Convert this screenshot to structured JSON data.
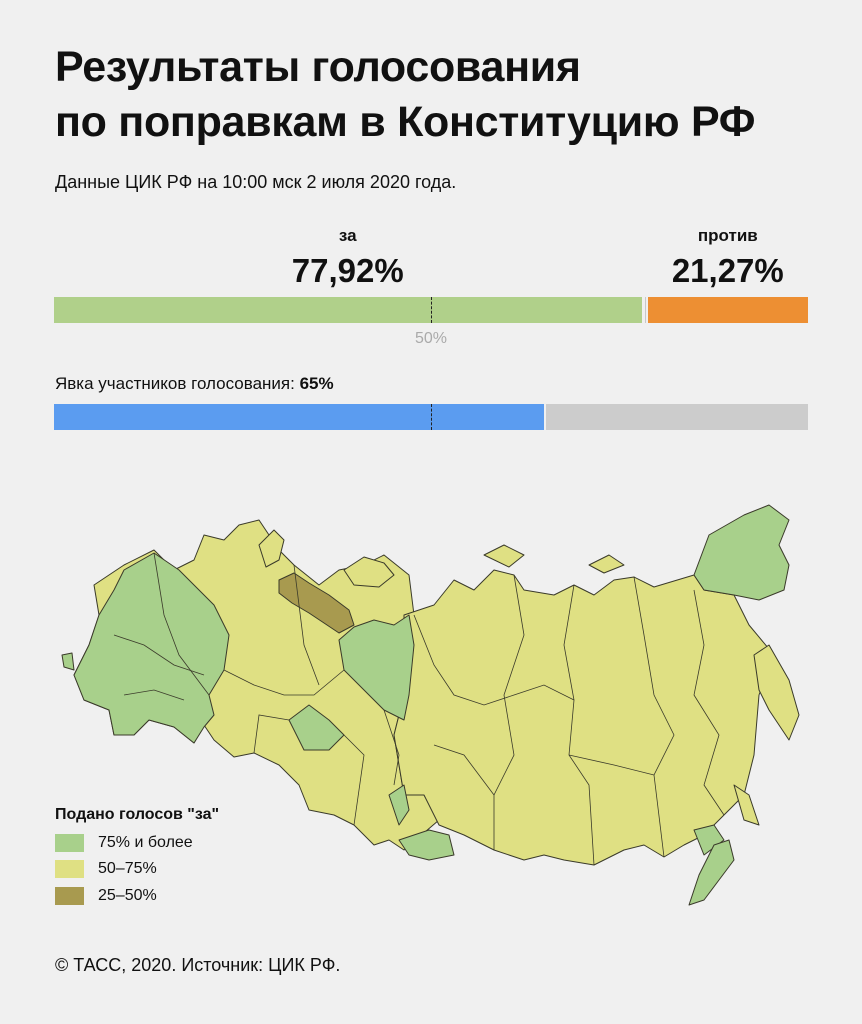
{
  "title_line1": "Результаты голосования",
  "title_line2": "по поправкам в Конституцию РФ",
  "subtitle": "Данные ЦИК РФ на 10:00 мск 2 июля 2020 года.",
  "colors": {
    "for": "#b0d08a",
    "against": "#ed8f33",
    "invalid": "#c8c8c8",
    "turnout": "#5b9cf0",
    "rest": "#cccccc",
    "map_high": "#a8d08b",
    "map_mid": "#dfe083",
    "map_low": "#a89a4f"
  },
  "chart_data": [
    {
      "type": "bar",
      "categories": [
        "за",
        "против"
      ],
      "values": [
        77.92,
        21.27
      ],
      "value_labels": [
        "77,92%",
        "21,27%"
      ],
      "ylim": [
        0,
        100
      ],
      "reference_line": 50,
      "reference_label": "50%"
    },
    {
      "type": "bar",
      "label_prefix": "Явка участников голосования: ",
      "label_value": "65%",
      "values": [
        65
      ],
      "ylim": [
        0,
        100
      ],
      "reference_line": 50
    }
  ],
  "legend": {
    "title": "Подано голосов \"за\"",
    "items": [
      {
        "label": "75% и более",
        "color_key": "map_high"
      },
      {
        "label": "50–75%",
        "color_key": "map_mid"
      },
      {
        "label": "25–50%",
        "color_key": "map_low"
      }
    ]
  },
  "footer": "© ТАСС, 2020. Источник: ЦИК РФ."
}
